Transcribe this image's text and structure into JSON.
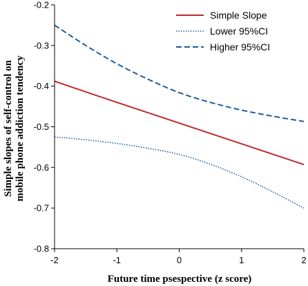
{
  "chart_data": {
    "type": "line",
    "xlabel": "Future time psespective (z score)",
    "ylabel_lines": [
      "Simple slopes of self-control on",
      "mobile phone addiction tendency"
    ],
    "xlim": [
      -2,
      2
    ],
    "ylim": [
      -0.8,
      -0.2
    ],
    "xticks": [
      -2,
      -1,
      0,
      1,
      2
    ],
    "xtick_labels": [
      "-2",
      "-1",
      "0",
      "1",
      "2"
    ],
    "yticks": [
      -0.8,
      -0.7,
      -0.6,
      -0.5,
      -0.4,
      -0.3,
      -0.2
    ],
    "ytick_labels": [
      "-0.8",
      "-0.7",
      "-0.6",
      "-0.5",
      "-0.4",
      "-0.3",
      "-0.2"
    ],
    "grid": false,
    "legend_position": "top-right",
    "series": [
      {
        "name": "Simple Slope",
        "color": "#c0282c",
        "style": "solid",
        "x": [
          -2,
          -1,
          0,
          1,
          2
        ],
        "y": [
          -0.388,
          -0.44,
          -0.491,
          -0.542,
          -0.593
        ]
      },
      {
        "name": "Lower 95%CI",
        "color": "#1f5c99",
        "style": "dotted",
        "x": [
          -2,
          -1.5,
          -1,
          -0.5,
          0,
          0.5,
          1,
          1.5,
          2
        ],
        "y": [
          -0.525,
          -0.532,
          -0.541,
          -0.553,
          -0.568,
          -0.592,
          -0.623,
          -0.66,
          -0.7
        ]
      },
      {
        "name": "Higher 95%CI",
        "color": "#1f5c99",
        "style": "dashed",
        "x": [
          -2,
          -1.5,
          -1,
          -0.5,
          0,
          0.5,
          1,
          1.5,
          2
        ],
        "y": [
          -0.25,
          -0.3,
          -0.345,
          -0.383,
          -0.416,
          -0.44,
          -0.459,
          -0.474,
          -0.487
        ]
      }
    ]
  }
}
